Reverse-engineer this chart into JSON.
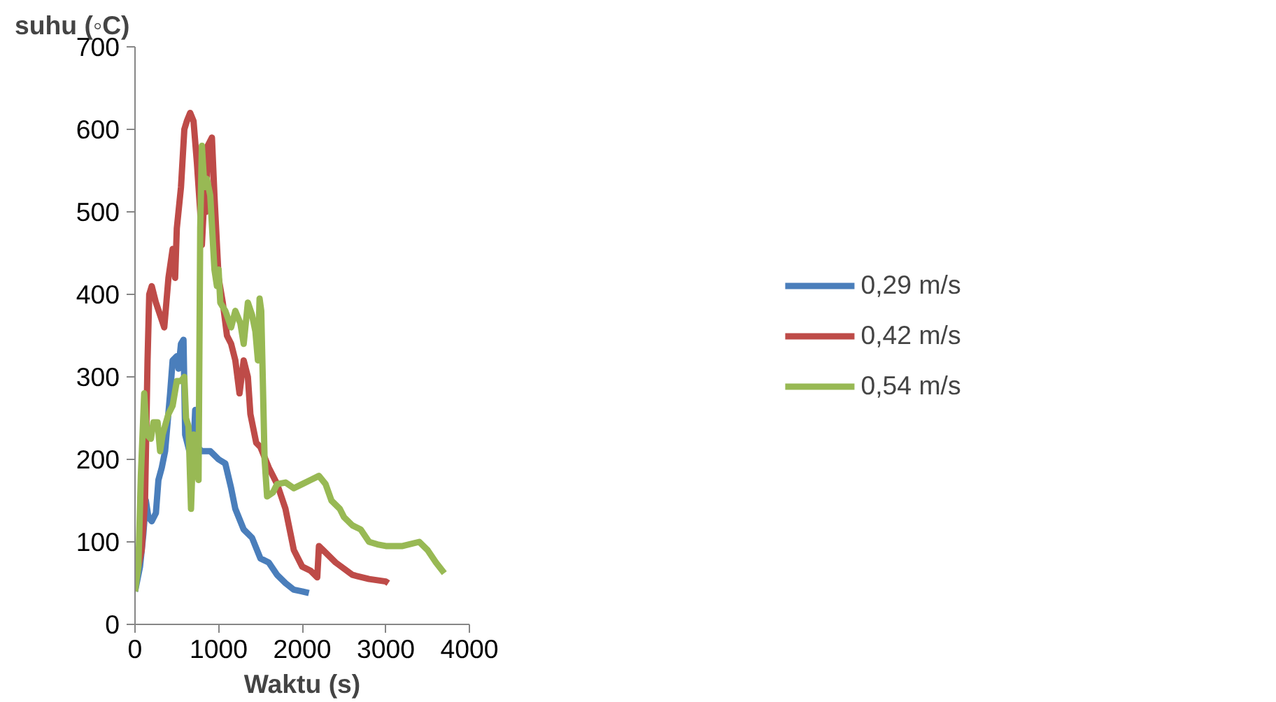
{
  "chart_data": {
    "type": "line",
    "xlabel": "Waktu (s)",
    "ylabel": "suhu (◦C)",
    "xlim": [
      0,
      4000
    ],
    "xticks": [
      0,
      1000,
      2000,
      3000,
      4000
    ],
    "ylim": [
      0,
      700
    ],
    "yticks": [
      0,
      100,
      200,
      300,
      400,
      500,
      600,
      700
    ],
    "grid": false,
    "legend": "right",
    "marker": "none",
    "line_style": "solid",
    "series": [
      {
        "name": "0,29 m/s",
        "color": "#4a7ebb",
        "x": [
          0,
          60,
          100,
          130,
          160,
          200,
          250,
          280,
          320,
          360,
          420,
          450,
          500,
          520,
          550,
          580,
          600,
          650,
          700,
          720,
          740,
          800,
          900,
          1000,
          1080,
          1150,
          1200,
          1300,
          1400,
          1500,
          1600,
          1700,
          1800,
          1900,
          2000,
          2080
        ],
        "values": [
          40,
          70,
          110,
          150,
          130,
          125,
          135,
          175,
          190,
          210,
          280,
          320,
          325,
          310,
          340,
          345,
          230,
          210,
          215,
          260,
          215,
          210,
          210,
          200,
          195,
          165,
          140,
          115,
          105,
          80,
          75,
          60,
          50,
          42,
          40,
          38
        ]
      },
      {
        "name": "0,42 m/s",
        "color": "#be4b48",
        "x": [
          0,
          80,
          120,
          150,
          170,
          200,
          250,
          300,
          350,
          400,
          450,
          480,
          500,
          550,
          590,
          620,
          660,
          700,
          740,
          780,
          800,
          830,
          850,
          870,
          920,
          950,
          1000,
          1050,
          1100,
          1150,
          1200,
          1250,
          1300,
          1350,
          1380,
          1450,
          1500,
          1600,
          1700,
          1800,
          1900,
          2000,
          2100,
          2180,
          2200,
          2250,
          2400,
          2600,
          2800,
          3000,
          3030
        ],
        "values": [
          50,
          90,
          150,
          320,
          400,
          410,
          390,
          375,
          360,
          420,
          455,
          420,
          480,
          530,
          600,
          610,
          620,
          610,
          560,
          500,
          460,
          520,
          500,
          580,
          590,
          520,
          420,
          390,
          350,
          340,
          320,
          280,
          320,
          300,
          255,
          220,
          215,
          190,
          170,
          140,
          90,
          70,
          65,
          57,
          95,
          90,
          75,
          60,
          55,
          52,
          50
        ]
      },
      {
        "name": "0,54 m/s",
        "color": "#98b954",
        "x": [
          0,
          40,
          70,
          110,
          140,
          190,
          220,
          270,
          300,
          330,
          400,
          450,
          500,
          550,
          590,
          610,
          640,
          670,
          700,
          730,
          760,
          780,
          800,
          830,
          860,
          900,
          950,
          980,
          1000,
          1020,
          1080,
          1150,
          1200,
          1260,
          1300,
          1350,
          1400,
          1440,
          1470,
          1490,
          1510,
          1550,
          1580,
          1650,
          1700,
          1800,
          1900,
          2000,
          2100,
          2200,
          2280,
          2350,
          2450,
          2500,
          2600,
          2700,
          2800,
          2900,
          3000,
          3200,
          3400,
          3500,
          3600,
          3700
        ],
        "values": [
          40,
          70,
          180,
          280,
          230,
          225,
          245,
          245,
          210,
          230,
          255,
          265,
          295,
          295,
          300,
          250,
          240,
          140,
          230,
          190,
          175,
          480,
          580,
          530,
          540,
          520,
          430,
          410,
          430,
          390,
          380,
          360,
          380,
          365,
          340,
          390,
          375,
          355,
          320,
          395,
          380,
          200,
          155,
          160,
          170,
          172,
          165,
          170,
          175,
          180,
          170,
          150,
          140,
          130,
          120,
          115,
          100,
          97,
          95,
          95,
          100,
          90,
          75,
          62
        ]
      }
    ]
  }
}
